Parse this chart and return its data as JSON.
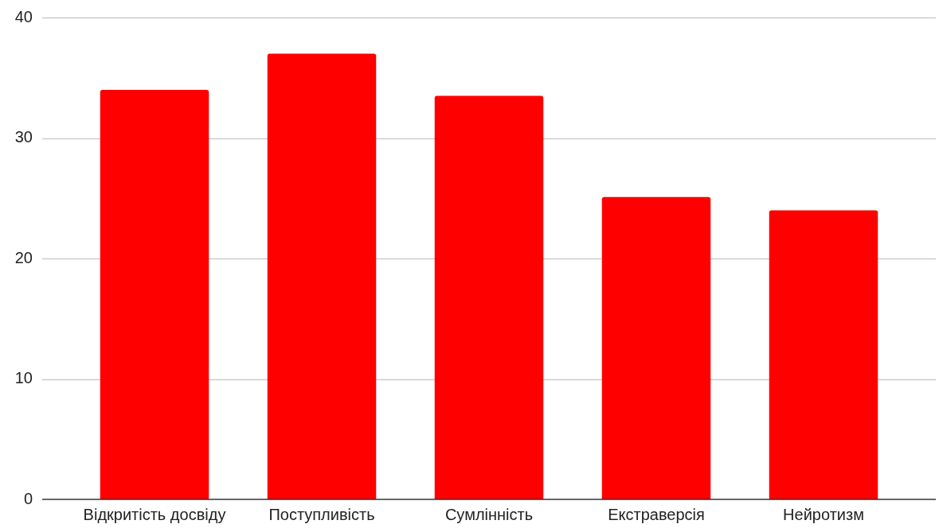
{
  "chart_data": {
    "type": "bar",
    "categories": [
      "Відкритість досвіду",
      "Поступливість",
      "Сумлінність",
      "Екстраверсія",
      "Нейротизм"
    ],
    "values": [
      34,
      37,
      33.5,
      25.1,
      24
    ],
    "color": "#ff0000",
    "ylim": [
      0,
      40
    ],
    "yticks": [
      0,
      10,
      20,
      30,
      40
    ],
    "grid": "y"
  }
}
